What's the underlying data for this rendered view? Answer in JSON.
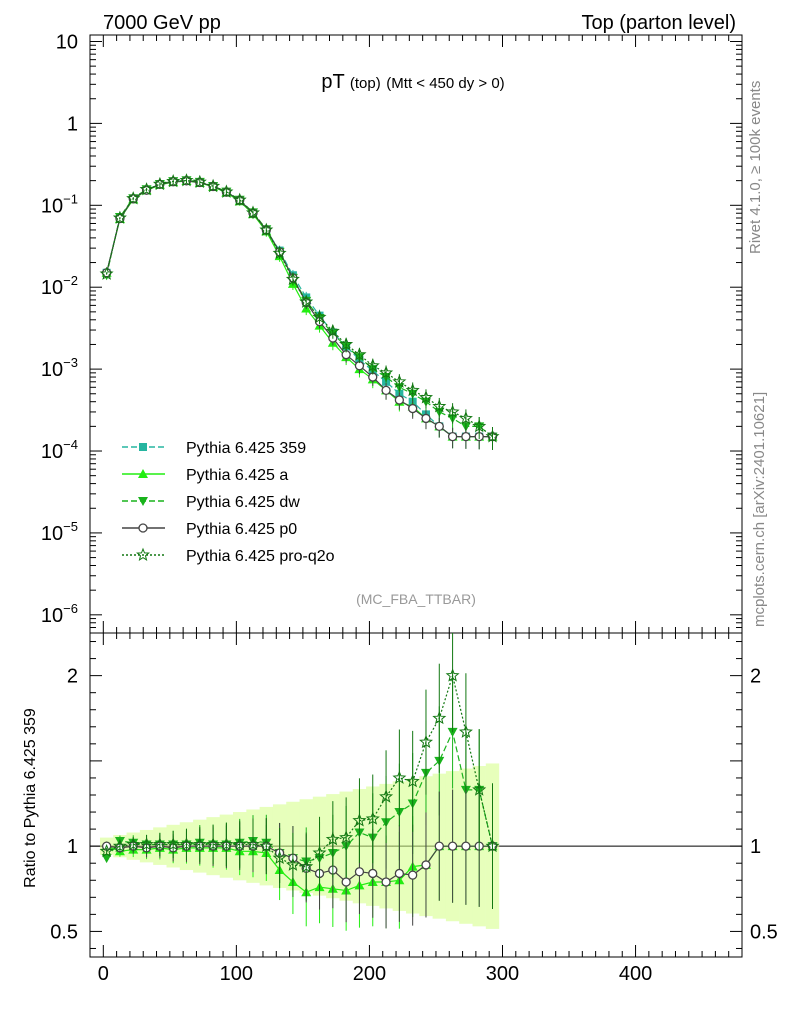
{
  "header": {
    "left": "7000 GeV pp",
    "right": "Top (parton level)"
  },
  "side_labels": {
    "rivet": "Rivet 4.1.0, ≥ 100k events",
    "mcplots": "mcplots.cern.ch [arXiv:2401.10621]"
  },
  "watermark": "(MC_FBA_TTBAR)",
  "chart_data": [
    {
      "type": "line",
      "title": "pT",
      "title_sub": "(top)",
      "title_cond": "(Mtt < 450 dy > 0)",
      "yscale": "log",
      "xlim": [
        -10,
        480
      ],
      "ylim": [
        6e-07,
        12
      ],
      "y_ticks": [
        {
          "v": 10,
          "m": "10"
        },
        {
          "v": 1,
          "m": "1"
        },
        {
          "v": 0.1,
          "m": "10",
          "e": "−1"
        },
        {
          "v": 0.01,
          "m": "10",
          "e": "−2"
        },
        {
          "v": 0.001,
          "m": "10",
          "e": "−3"
        },
        {
          "v": 0.0001,
          "m": "10",
          "e": "−4"
        },
        {
          "v": 1e-05,
          "m": "10",
          "e": "−5"
        },
        {
          "v": 1e-06,
          "m": "10",
          "e": "−6"
        }
      ],
      "legend": [
        {
          "label": "Pythia 6.425 359",
          "color": "#26b5a0",
          "marker": "square",
          "dash": "6,3"
        },
        {
          "label": "Pythia 6.425 a",
          "color": "#22ee11",
          "marker": "triangle-up",
          "dash": ""
        },
        {
          "label": "Pythia 6.425 dw",
          "color": "#19b31c",
          "marker": "triangle-down",
          "dash": "6,3"
        },
        {
          "label": "Pythia 6.425 p0",
          "color": "#444444",
          "marker": "circle",
          "dash": ""
        },
        {
          "label": "Pythia 6.425 pro-q2o",
          "color": "#117711",
          "marker": "star",
          "dash": "2,2"
        }
      ],
      "series": [
        {
          "name": "Pythia 6.425 359",
          "x": [
            2.5,
            12.5,
            22.5,
            32.5,
            42.5,
            52.5,
            62.5,
            72.5,
            82.5,
            92.5,
            102.5,
            112.5,
            122.5,
            132.5,
            142.5,
            152.5,
            162.5,
            172.5,
            182.5,
            192.5,
            202.5,
            212.5,
            222.5,
            232.5,
            242.5,
            252.5,
            262.5,
            272.5,
            282.5,
            292.5
          ],
          "y": [
            0.015,
            0.07,
            0.12,
            0.155,
            0.18,
            0.195,
            0.2,
            0.19,
            0.17,
            0.145,
            0.115,
            0.08,
            0.05,
            0.028,
            0.014,
            0.0075,
            0.0045,
            0.0028,
            0.0019,
            0.0013,
            0.00095,
            0.0007,
            0.0005,
            0.0004,
            0.00028,
            0.0002,
            0.00015,
            0.00015,
            0.00015,
            0.00015
          ]
        },
        {
          "name": "Pythia 6.425 a",
          "x": [
            2.5,
            12.5,
            22.5,
            32.5,
            42.5,
            52.5,
            62.5,
            72.5,
            82.5,
            92.5,
            102.5,
            112.5,
            122.5,
            132.5,
            142.5,
            152.5,
            162.5,
            172.5,
            182.5,
            192.5,
            202.5,
            212.5,
            222.5,
            232.5,
            242.5,
            252.5,
            262.5,
            272.5,
            282.5,
            292.5
          ],
          "y": [
            0.015,
            0.068,
            0.118,
            0.152,
            0.178,
            0.192,
            0.198,
            0.188,
            0.168,
            0.143,
            0.112,
            0.078,
            0.048,
            0.024,
            0.011,
            0.0055,
            0.0034,
            0.0021,
            0.0014,
            0.001,
            0.00075,
            0.00055,
            0.0004,
            0.00035,
            0.00025,
            0.0002,
            0.00015,
            0.00015,
            0.00015,
            0.00015
          ]
        },
        {
          "name": "Pythia 6.425 dw",
          "x": [
            2.5,
            12.5,
            22.5,
            32.5,
            42.5,
            52.5,
            62.5,
            72.5,
            82.5,
            92.5,
            102.5,
            112.5,
            122.5,
            132.5,
            142.5,
            152.5,
            162.5,
            172.5,
            182.5,
            192.5,
            202.5,
            212.5,
            222.5,
            232.5,
            242.5,
            252.5,
            262.5,
            272.5,
            282.5,
            292.5
          ],
          "y": [
            0.014,
            0.072,
            0.122,
            0.157,
            0.182,
            0.197,
            0.202,
            0.193,
            0.172,
            0.147,
            0.117,
            0.082,
            0.051,
            0.027,
            0.013,
            0.0068,
            0.0042,
            0.0027,
            0.0019,
            0.0014,
            0.001,
            0.0008,
            0.0006,
            0.0005,
            0.0004,
            0.0003,
            0.00025,
            0.0002,
            0.0002,
            0.00015
          ]
        },
        {
          "name": "Pythia 6.425 p0",
          "x": [
            2.5,
            12.5,
            22.5,
            32.5,
            42.5,
            52.5,
            62.5,
            72.5,
            82.5,
            92.5,
            102.5,
            112.5,
            122.5,
            132.5,
            142.5,
            152.5,
            162.5,
            172.5,
            182.5,
            192.5,
            202.5,
            212.5,
            222.5,
            232.5,
            242.5,
            252.5,
            262.5,
            272.5,
            282.5,
            292.5
          ],
          "y": [
            0.015,
            0.069,
            0.12,
            0.153,
            0.18,
            0.194,
            0.199,
            0.19,
            0.17,
            0.145,
            0.115,
            0.08,
            0.05,
            0.027,
            0.013,
            0.0065,
            0.0038,
            0.0024,
            0.0015,
            0.0011,
            0.0008,
            0.00055,
            0.00042,
            0.00033,
            0.00025,
            0.0002,
            0.00015,
            0.00015,
            0.00015,
            0.00015
          ]
        },
        {
          "name": "Pythia 6.425 pro-q2o",
          "x": [
            2.5,
            12.5,
            22.5,
            32.5,
            42.5,
            52.5,
            62.5,
            72.5,
            82.5,
            92.5,
            102.5,
            112.5,
            122.5,
            132.5,
            142.5,
            152.5,
            162.5,
            172.5,
            182.5,
            192.5,
            202.5,
            212.5,
            222.5,
            232.5,
            242.5,
            252.5,
            262.5,
            272.5,
            282.5,
            292.5
          ],
          "y": [
            0.0145,
            0.07,
            0.121,
            0.156,
            0.181,
            0.196,
            0.201,
            0.192,
            0.171,
            0.146,
            0.116,
            0.081,
            0.05,
            0.026,
            0.0125,
            0.0066,
            0.0043,
            0.0029,
            0.002,
            0.0015,
            0.0011,
            0.0009,
            0.0007,
            0.00055,
            0.00045,
            0.00035,
            0.0003,
            0.00025,
            0.0002,
            0.00015
          ]
        }
      ]
    },
    {
      "type": "line",
      "ylabel": "Ratio to Pythia 6.425 359",
      "xlim": [
        -10,
        480
      ],
      "ylim": [
        0.35,
        2.25
      ],
      "x_ticks": [
        0,
        100,
        200,
        300,
        400
      ],
      "y_ticks": [
        0.5,
        1,
        2
      ],
      "series": [
        {
          "name": "Pythia 6.425 a",
          "x": [
            2.5,
            12.5,
            22.5,
            32.5,
            42.5,
            52.5,
            62.5,
            72.5,
            82.5,
            92.5,
            102.5,
            112.5,
            122.5,
            132.5,
            142.5,
            152.5,
            162.5,
            172.5,
            182.5,
            192.5,
            202.5,
            212.5,
            222.5,
            232.5,
            242.5,
            252.5,
            262.5,
            272.5,
            282.5,
            292.5
          ],
          "y": [
            1.0,
            0.97,
            0.98,
            0.98,
            0.99,
            0.98,
            0.99,
            0.99,
            0.99,
            0.99,
            0.97,
            0.97,
            0.96,
            0.86,
            0.79,
            0.73,
            0.76,
            0.75,
            0.74,
            0.77,
            0.79,
            0.79,
            0.8,
            0.88,
            0.89,
            1.0,
            1.0,
            1.0,
            1.0,
            1.0
          ]
        },
        {
          "name": "Pythia 6.425 dw",
          "x": [
            2.5,
            12.5,
            22.5,
            32.5,
            42.5,
            52.5,
            62.5,
            72.5,
            82.5,
            92.5,
            102.5,
            112.5,
            122.5,
            132.5,
            142.5,
            152.5,
            162.5,
            172.5,
            182.5,
            192.5,
            202.5,
            212.5,
            222.5,
            232.5,
            242.5,
            252.5,
            262.5,
            272.5,
            282.5,
            292.5
          ],
          "y": [
            0.93,
            1.03,
            1.02,
            1.01,
            1.01,
            1.01,
            1.01,
            1.02,
            1.01,
            1.01,
            1.02,
            1.03,
            1.02,
            0.96,
            0.93,
            0.91,
            0.93,
            0.96,
            1.0,
            1.08,
            1.05,
            1.14,
            1.2,
            1.25,
            1.43,
            1.5,
            1.67,
            1.33,
            1.33,
            1.0
          ]
        },
        {
          "name": "Pythia 6.425 p0",
          "x": [
            2.5,
            12.5,
            22.5,
            32.5,
            42.5,
            52.5,
            62.5,
            72.5,
            82.5,
            92.5,
            102.5,
            112.5,
            122.5,
            132.5,
            142.5,
            152.5,
            162.5,
            172.5,
            182.5,
            192.5,
            202.5,
            212.5,
            222.5,
            232.5,
            242.5,
            252.5,
            262.5,
            272.5,
            282.5,
            292.5
          ],
          "y": [
            1.0,
            0.99,
            1.0,
            0.99,
            1.0,
            0.99,
            1.0,
            1.0,
            1.0,
            1.0,
            1.0,
            1.0,
            1.0,
            0.96,
            0.93,
            0.87,
            0.84,
            0.86,
            0.79,
            0.85,
            0.84,
            0.79,
            0.84,
            0.83,
            0.89,
            1.0,
            1.0,
            1.0,
            1.0,
            1.0
          ]
        },
        {
          "name": "Pythia 6.425 pro-q2o",
          "x": [
            2.5,
            12.5,
            22.5,
            32.5,
            42.5,
            52.5,
            62.5,
            72.5,
            82.5,
            92.5,
            102.5,
            112.5,
            122.5,
            132.5,
            142.5,
            152.5,
            162.5,
            172.5,
            182.5,
            192.5,
            202.5,
            212.5,
            222.5,
            232.5,
            242.5,
            252.5,
            262.5,
            272.5,
            282.5,
            292.5
          ],
          "y": [
            0.97,
            1.0,
            1.01,
            1.01,
            1.01,
            1.01,
            1.01,
            1.01,
            1.01,
            1.01,
            1.01,
            1.01,
            1.0,
            0.93,
            0.89,
            0.88,
            0.96,
            1.04,
            1.05,
            1.15,
            1.16,
            1.29,
            1.4,
            1.38,
            1.61,
            1.75,
            2.0,
            1.67,
            1.33,
            1.0
          ]
        }
      ]
    }
  ]
}
